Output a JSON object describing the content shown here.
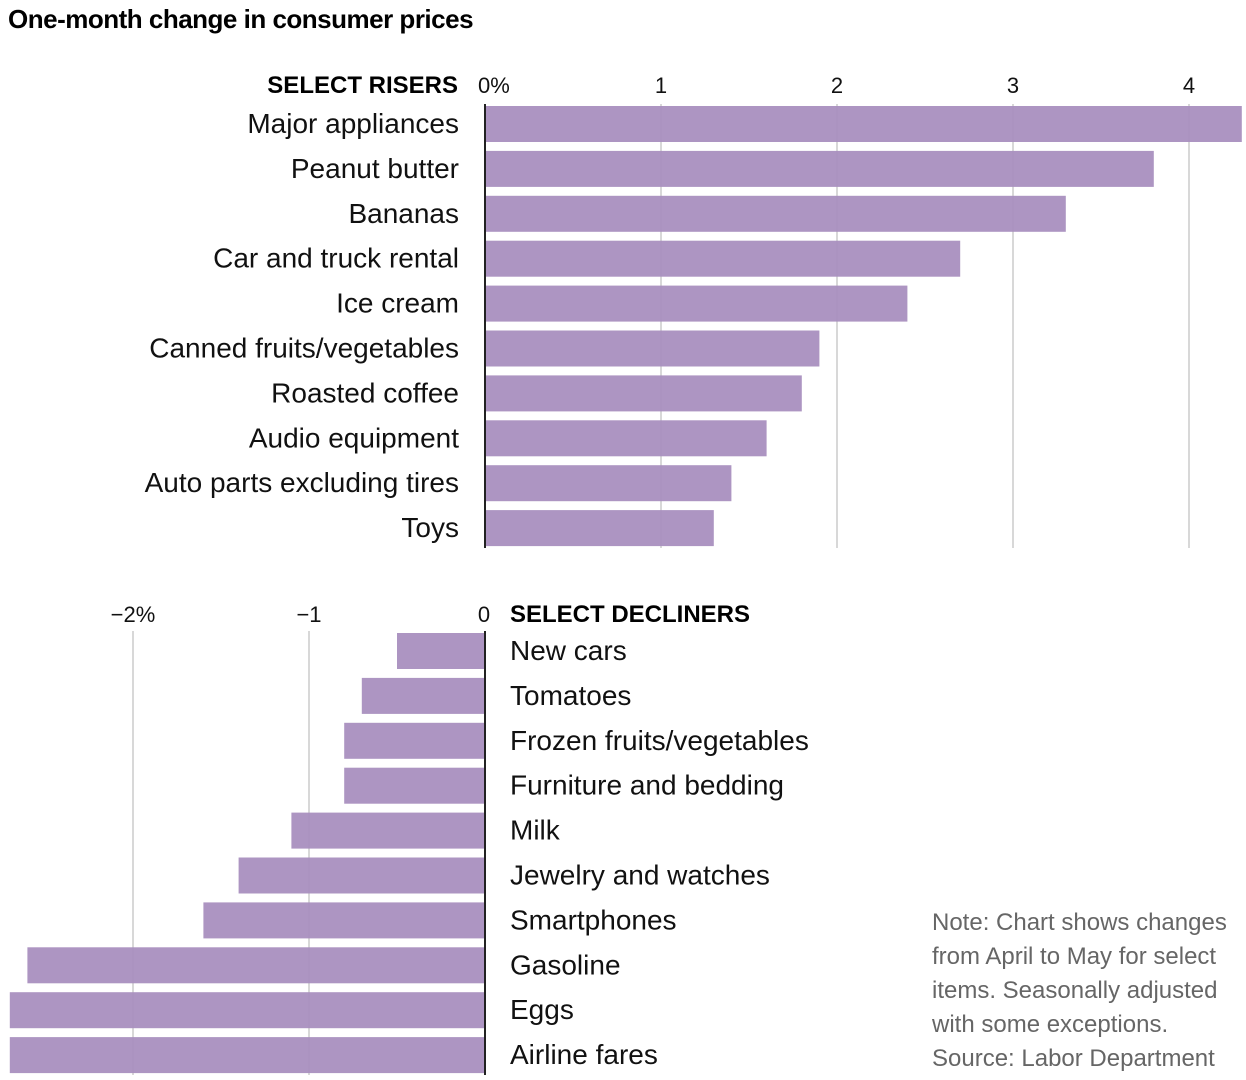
{
  "chart_data": {
    "type": "bar",
    "title": "One-month change in consumer prices",
    "units": "percent",
    "panels": [
      {
        "name": "risers",
        "heading": "SELECT RISERS",
        "orientation": "horizontal",
        "xlim": [
          0,
          4.3
        ],
        "ticks": [
          {
            "value": 0,
            "label": "0%"
          },
          {
            "value": 1,
            "label": "1"
          },
          {
            "value": 2,
            "label": "2"
          },
          {
            "value": 3,
            "label": "3"
          },
          {
            "value": 4,
            "label": "4"
          }
        ],
        "categories": [
          "Major appliances",
          "Peanut butter",
          "Bananas",
          "Car and truck rental",
          "Ice cream",
          "Canned fruits/vegetables",
          "Roasted coffee",
          "Audio equipment",
          "Auto parts excluding tires",
          "Toys"
        ],
        "values": [
          4.3,
          3.8,
          3.3,
          2.7,
          2.4,
          1.9,
          1.8,
          1.6,
          1.4,
          1.3
        ]
      },
      {
        "name": "decliners",
        "heading": "SELECT DECLINERS",
        "orientation": "horizontal",
        "xlim": [
          -2.7,
          0
        ],
        "ticks": [
          {
            "value": -2,
            "label": "−2%"
          },
          {
            "value": -1,
            "label": "−1"
          },
          {
            "value": 0,
            "label": "0"
          }
        ],
        "categories": [
          "New cars",
          "Tomatoes",
          "Frozen fruits/vegetables",
          "Furniture and bedding",
          "Milk",
          "Jewelry and watches",
          "Smartphones",
          "Gasoline",
          "Eggs",
          "Airline fares"
        ],
        "values": [
          -0.5,
          -0.7,
          -0.8,
          -0.8,
          -1.1,
          -1.4,
          -1.6,
          -2.6,
          -2.7,
          -2.7
        ]
      }
    ],
    "note_lines": [
      "Note: Chart shows changes",
      "from April to May for select",
      "items. Seasonally adjusted",
      "with some exceptions.",
      "Source: Labor Department"
    ]
  },
  "colors": {
    "bar": "#a98fbf",
    "grid": "#d8d8d8",
    "axis": "#222222",
    "note": "#666666"
  }
}
